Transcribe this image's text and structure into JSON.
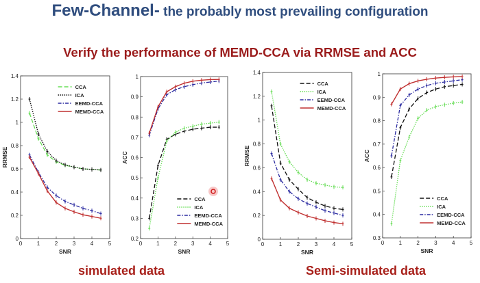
{
  "title": {
    "main": "Few-Channel-",
    "rest": " the probably most prevailing configuration"
  },
  "subtitle": "Verify the performance of MEMD-CCA via RRMSE and ACC",
  "captions": {
    "left": "simulated data",
    "right": "Semi-simulated data"
  },
  "colors": {
    "green": "#66dd55",
    "black": "#111111",
    "blue": "#2a2aa0",
    "red": "#c03030"
  },
  "chart_data": [
    {
      "type": "line",
      "group": "simulated",
      "xlabel": "SNR",
      "ylabel": "RRMSE",
      "xlim": [
        0,
        5
      ],
      "ylim": [
        0,
        1.4
      ],
      "xticks": [
        0,
        1,
        2,
        3,
        4,
        5
      ],
      "xtick_labels": [
        "0",
        "1",
        "2",
        "3",
        "4",
        "5"
      ],
      "yticks": [
        0,
        0.2,
        0.4,
        0.6,
        0.8,
        1,
        1.2,
        1.4
      ],
      "ytick_labels": [
        "0",
        "0.2",
        "0.4",
        "0.6",
        "0.8",
        "1",
        "1.2",
        "1.4"
      ],
      "legend": "top-right",
      "x": [
        0.5,
        1,
        1.5,
        2,
        2.5,
        3,
        3.5,
        4,
        4.5
      ],
      "series": [
        {
          "name": "CCA",
          "color": "#66dd55",
          "style": "dashed",
          "values": [
            1.08,
            0.86,
            0.72,
            0.66,
            0.63,
            0.615,
            0.6,
            0.595,
            0.59
          ]
        },
        {
          "name": "ICA",
          "color": "#111111",
          "style": "dotted",
          "values": [
            1.2,
            0.9,
            0.75,
            0.67,
            0.635,
            0.615,
            0.6,
            0.595,
            0.59
          ]
        },
        {
          "name": "EEMD-CCA",
          "color": "#2a2aa0",
          "style": "dashdot",
          "values": [
            0.72,
            0.57,
            0.44,
            0.37,
            0.32,
            0.29,
            0.26,
            0.24,
            0.215
          ]
        },
        {
          "name": "MEMD-CCA",
          "color": "#c03030",
          "style": "solid",
          "values": [
            0.7,
            0.56,
            0.41,
            0.31,
            0.26,
            0.23,
            0.205,
            0.19,
            0.175
          ]
        }
      ]
    },
    {
      "type": "line",
      "group": "simulated",
      "xlabel": "SNR",
      "ylabel": "ACC",
      "xlim": [
        0,
        5
      ],
      "ylim": [
        0.2,
        1
      ],
      "xticks": [
        0,
        1,
        2,
        3,
        4,
        5
      ],
      "xtick_labels": [
        "0",
        "1",
        "2",
        "3",
        "4",
        "5"
      ],
      "yticks": [
        0.2,
        0.3,
        0.4,
        0.5,
        0.6,
        0.7,
        0.8,
        0.9,
        1
      ],
      "ytick_labels": [
        "0.2",
        "0.3",
        "0.4",
        "0.5",
        "0.6",
        "0.7",
        "0.8",
        "0.9",
        "1"
      ],
      "legend": "bottom-right",
      "x": [
        0.5,
        1,
        1.5,
        2,
        2.5,
        3,
        3.5,
        4,
        4.5
      ],
      "series": [
        {
          "name": "CCA",
          "color": "#111111",
          "style": "dashed",
          "values": [
            0.3,
            0.56,
            0.69,
            0.715,
            0.73,
            0.74,
            0.745,
            0.75,
            0.75
          ]
        },
        {
          "name": "ICA",
          "color": "#66dd55",
          "style": "dotted",
          "values": [
            0.25,
            0.5,
            0.68,
            0.725,
            0.745,
            0.755,
            0.765,
            0.77,
            0.775
          ]
        },
        {
          "name": "EEMD-CCA",
          "color": "#2a2aa0",
          "style": "dashdot",
          "values": [
            0.71,
            0.84,
            0.91,
            0.935,
            0.95,
            0.96,
            0.968,
            0.973,
            0.978
          ]
        },
        {
          "name": "MEMD-CCA",
          "color": "#c03030",
          "style": "solid",
          "values": [
            0.72,
            0.85,
            0.925,
            0.95,
            0.967,
            0.977,
            0.982,
            0.985,
            0.986
          ]
        }
      ]
    },
    {
      "type": "line",
      "group": "semi-simulated",
      "xlabel": "SNR",
      "ylabel": "RRMSE",
      "xlim": [
        0,
        5
      ],
      "ylim": [
        0,
        1.4
      ],
      "xticks": [
        0,
        1,
        2,
        3,
        4,
        5
      ],
      "xtick_labels": [
        "0",
        "1",
        "2",
        "3",
        "4",
        "5"
      ],
      "yticks": [
        0,
        0.2,
        0.4,
        0.6,
        0.8,
        1,
        1.2,
        1.4
      ],
      "ytick_labels": [
        "0",
        "0.2",
        "0.4",
        "0.6",
        "0.8",
        "1",
        "1.2",
        "1.4"
      ],
      "legend": "top-right",
      "x": [
        0.5,
        1,
        1.5,
        2,
        2.5,
        3,
        3.5,
        4,
        4.5
      ],
      "series": [
        {
          "name": "CCA",
          "color": "#111111",
          "style": "dashed",
          "values": [
            1.12,
            0.64,
            0.5,
            0.42,
            0.35,
            0.31,
            0.28,
            0.26,
            0.25
          ]
        },
        {
          "name": "ICA",
          "color": "#66dd55",
          "style": "dotted",
          "values": [
            1.24,
            0.8,
            0.65,
            0.56,
            0.5,
            0.47,
            0.455,
            0.44,
            0.435
          ]
        },
        {
          "name": "EEMD-CCA",
          "color": "#2a2aa0",
          "style": "dashdot",
          "values": [
            0.72,
            0.5,
            0.4,
            0.34,
            0.3,
            0.27,
            0.24,
            0.22,
            0.2
          ]
        },
        {
          "name": "MEMD-CCA",
          "color": "#c03030",
          "style": "solid",
          "values": [
            0.51,
            0.33,
            0.26,
            0.225,
            0.195,
            0.175,
            0.155,
            0.14,
            0.13
          ]
        }
      ]
    },
    {
      "type": "line",
      "group": "semi-simulated",
      "xlabel": "SNR",
      "ylabel": "ACC",
      "xlim": [
        0,
        5
      ],
      "ylim": [
        0.3,
        1
      ],
      "xticks": [
        0,
        1,
        2,
        3,
        4,
        5
      ],
      "xtick_labels": [
        "0",
        "1",
        "2",
        "3",
        "4",
        "5"
      ],
      "yticks": [
        0.3,
        0.4,
        0.5,
        0.6,
        0.7,
        0.8,
        0.9,
        1
      ],
      "ytick_labels": [
        "0.3",
        "0.4",
        "0.5",
        "0.6",
        "0.7",
        "0.8",
        "0.9",
        "1"
      ],
      "legend": "bottom-right",
      "x": [
        0.5,
        1,
        1.5,
        2,
        2.5,
        3,
        3.5,
        4,
        4.5
      ],
      "series": [
        {
          "name": "CCA",
          "color": "#111111",
          "style": "dashed",
          "values": [
            0.56,
            0.77,
            0.85,
            0.895,
            0.92,
            0.935,
            0.945,
            0.95,
            0.955
          ]
        },
        {
          "name": "ICA",
          "color": "#66dd55",
          "style": "dotted",
          "values": [
            0.36,
            0.63,
            0.73,
            0.81,
            0.845,
            0.86,
            0.868,
            0.875,
            0.88
          ]
        },
        {
          "name": "EEMD-CCA",
          "color": "#2a2aa0",
          "style": "dashdot",
          "values": [
            0.65,
            0.865,
            0.91,
            0.935,
            0.95,
            0.96,
            0.965,
            0.97,
            0.975
          ]
        },
        {
          "name": "MEMD-CCA",
          "color": "#c03030",
          "style": "solid",
          "values": [
            0.87,
            0.935,
            0.958,
            0.97,
            0.977,
            0.982,
            0.985,
            0.987,
            0.988
          ]
        }
      ]
    }
  ]
}
